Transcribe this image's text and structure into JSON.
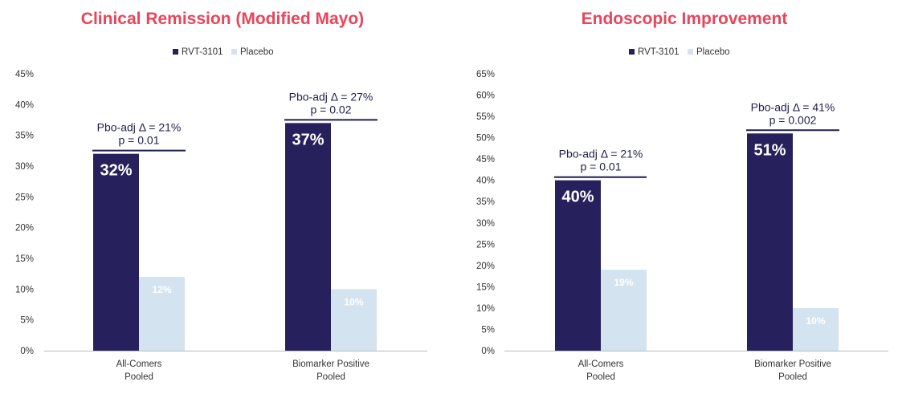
{
  "colors": {
    "title": "#e8455a",
    "rvt": "#26215c",
    "placebo": "#d3e4f0",
    "axis": "#bbbbbb",
    "annotation": "#1f1f4d"
  },
  "chart_data": [
    {
      "type": "bar",
      "title": "Clinical Remission (Modified Mayo)",
      "categories": [
        "All-Comers Pooled",
        "Biomarker Positive Pooled"
      ],
      "category_lines": [
        [
          "All-Comers",
          "Pooled"
        ],
        [
          "Biomarker Positive",
          "Pooled"
        ]
      ],
      "series": [
        {
          "name": "RVT-3101",
          "values": [
            32,
            37
          ],
          "labels": [
            "32%",
            "37%"
          ]
        },
        {
          "name": "Placebo",
          "values": [
            12,
            10
          ],
          "labels": [
            "12%",
            "10%"
          ]
        }
      ],
      "ylim": [
        0,
        45
      ],
      "ystep": 5,
      "yticks": [
        "0%",
        "5%",
        "10%",
        "15%",
        "20%",
        "25%",
        "30%",
        "35%",
        "40%",
        "45%"
      ],
      "legend": "top-right",
      "annotations": [
        {
          "line1": "Pbo-adj Δ = 21%",
          "line2": "p = 0.01"
        },
        {
          "line1": "Pbo-adj Δ = 27%",
          "line2": "p = 0.02"
        }
      ]
    },
    {
      "type": "bar",
      "title": "Endoscopic Improvement",
      "categories": [
        "All-Comers Pooled",
        "Biomarker Positive Pooled"
      ],
      "category_lines": [
        [
          "All-Comers",
          "Pooled"
        ],
        [
          "Biomarker Positive",
          "Pooled"
        ]
      ],
      "series": [
        {
          "name": "RVT-3101",
          "values": [
            40,
            51
          ],
          "labels": [
            "40%",
            "51%"
          ]
        },
        {
          "name": "Placebo",
          "values": [
            19,
            10
          ],
          "labels": [
            "19%",
            "10%"
          ]
        }
      ],
      "ylim": [
        0,
        65
      ],
      "ystep": 5,
      "yticks": [
        "0%",
        "5%",
        "10%",
        "15%",
        "20%",
        "25%",
        "30%",
        "35%",
        "40%",
        "45%",
        "50%",
        "55%",
        "60%",
        "65%"
      ],
      "legend": "top-right",
      "annotations": [
        {
          "line1": "Pbo-adj Δ = 21%",
          "line2": "p = 0.01"
        },
        {
          "line1": "Pbo-adj Δ = 41%",
          "line2": "p = 0.002"
        }
      ]
    }
  ]
}
